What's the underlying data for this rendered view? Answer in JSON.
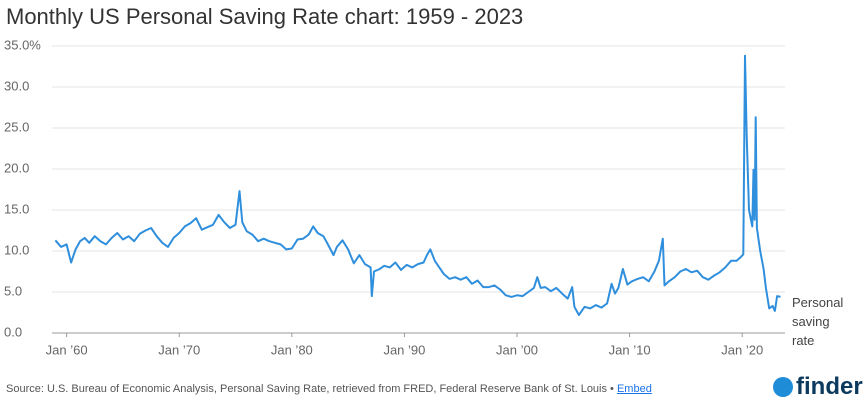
{
  "chart_data": {
    "type": "line",
    "title": "Monthly US Personal Saving Rate chart: 1959 - 2023",
    "source": "Source: U.S. Bureau of Economic Analysis, Personal Saving Rate, retrieved from FRED, Federal Reserve Bank of St. Louis •",
    "embed": "Embed",
    "logo": "finder",
    "grid": true,
    "xlim": [
      1958.7,
      2023.8
    ],
    "xticks": [
      {
        "value": 1960,
        "label": "Jan ’60"
      },
      {
        "value": 1970,
        "label": "Jan ’70"
      },
      {
        "value": 1980,
        "label": "Jan ’80"
      },
      {
        "value": 1990,
        "label": "Jan ’90"
      },
      {
        "value": 2000,
        "label": "Jan ’00"
      },
      {
        "value": 2010,
        "label": "Jan ’10"
      },
      {
        "value": 2020,
        "label": "Jan ’20"
      }
    ],
    "ylim": [
      0,
      35
    ],
    "yticks": [
      {
        "value": 0,
        "label": "0.0"
      },
      {
        "value": 5,
        "label": "5.0"
      },
      {
        "value": 10,
        "label": "10.0"
      },
      {
        "value": 15,
        "label": "15.0"
      },
      {
        "value": 20,
        "label": "20.0"
      },
      {
        "value": 25,
        "label": "25.0"
      },
      {
        "value": 30,
        "label": "30.0"
      },
      {
        "value": 35,
        "label": "35.0%"
      }
    ],
    "x": [
      1959.0,
      1959.5,
      1960.0,
      1960.4,
      1960.8,
      1961.2,
      1961.6,
      1962.0,
      1962.5,
      1963.0,
      1963.5,
      1964.0,
      1964.5,
      1965.0,
      1965.5,
      1966.0,
      1966.5,
      1967.0,
      1967.5,
      1968.0,
      1968.5,
      1969.0,
      1969.5,
      1970.0,
      1970.5,
      1971.0,
      1971.5,
      1972.0,
      1972.5,
      1973.0,
      1973.5,
      1974.0,
      1974.5,
      1975.0,
      1975.35,
      1975.6,
      1976.0,
      1976.5,
      1977.0,
      1977.5,
      1978.0,
      1978.5,
      1979.0,
      1979.5,
      1980.0,
      1980.5,
      1981.0,
      1981.5,
      1981.9,
      1982.3,
      1982.8,
      1983.2,
      1983.7,
      1984.0,
      1984.5,
      1985.0,
      1985.5,
      1986.0,
      1986.5,
      1987.0,
      1987.1,
      1987.3,
      1987.8,
      1988.2,
      1988.7,
      1989.2,
      1989.7,
      1990.2,
      1990.7,
      1991.2,
      1991.7,
      1992.0,
      1992.3,
      1992.7,
      1993.0,
      1993.5,
      1994.0,
      1994.5,
      1995.0,
      1995.5,
      1996.0,
      1996.5,
      1997.0,
      1997.5,
      1998.0,
      1998.5,
      1999.0,
      1999.5,
      2000.0,
      2000.5,
      2001.0,
      2001.5,
      2001.8,
      2002.1,
      2002.5,
      2003.0,
      2003.5,
      2004.0,
      2004.5,
      2004.9,
      2005.1,
      2005.5,
      2006.0,
      2006.5,
      2007.0,
      2007.5,
      2008.0,
      2008.4,
      2008.7,
      2009.0,
      2009.4,
      2009.8,
      2010.2,
      2010.7,
      2011.2,
      2011.7,
      2012.2,
      2012.6,
      2012.95,
      2013.1,
      2013.5,
      2014.0,
      2014.5,
      2015.0,
      2015.5,
      2016.0,
      2016.5,
      2017.0,
      2017.5,
      2018.0,
      2018.5,
      2019.0,
      2019.5,
      2019.9,
      2020.1,
      2020.25,
      2020.4,
      2020.6,
      2020.9,
      2021.0,
      2021.1,
      2021.2,
      2021.3,
      2021.6,
      2021.9,
      2022.1,
      2022.4,
      2022.7,
      2022.9,
      2023.1,
      2023.4
    ],
    "series": [
      {
        "name": "Personal saving rate",
        "color": "#2f8fdd",
        "values": [
          11.3,
          10.5,
          10.8,
          8.6,
          10.2,
          11.2,
          11.6,
          11.0,
          11.8,
          11.2,
          10.8,
          11.6,
          12.2,
          11.4,
          11.8,
          11.2,
          12.1,
          12.5,
          12.8,
          11.8,
          11.0,
          10.5,
          11.6,
          12.2,
          13.0,
          13.4,
          14.0,
          12.6,
          12.9,
          13.2,
          14.4,
          13.5,
          12.8,
          13.2,
          17.3,
          13.5,
          12.4,
          12.0,
          11.2,
          11.5,
          11.2,
          11.0,
          10.8,
          10.2,
          10.3,
          11.4,
          11.5,
          12.0,
          13.0,
          12.2,
          11.8,
          10.8,
          9.5,
          10.5,
          11.3,
          10.2,
          8.5,
          9.5,
          8.4,
          8.0,
          4.5,
          7.5,
          7.8,
          8.2,
          8.0,
          8.6,
          7.7,
          8.3,
          8.0,
          8.4,
          8.6,
          9.5,
          10.2,
          8.8,
          8.2,
          7.2,
          6.6,
          6.8,
          6.5,
          6.8,
          6.0,
          6.4,
          5.6,
          5.6,
          5.8,
          5.3,
          4.6,
          4.4,
          4.6,
          4.5,
          5.0,
          5.5,
          6.8,
          5.5,
          5.6,
          5.1,
          5.5,
          4.8,
          4.2,
          5.6,
          3.2,
          2.2,
          3.2,
          3.0,
          3.4,
          3.1,
          3.6,
          6.0,
          4.8,
          5.5,
          7.8,
          5.9,
          6.3,
          6.6,
          6.8,
          6.3,
          7.5,
          8.8,
          11.5,
          5.8,
          6.3,
          6.8,
          7.5,
          7.8,
          7.4,
          7.6,
          6.8,
          6.5,
          7.0,
          7.4,
          8.0,
          8.8,
          8.8,
          9.3,
          9.6,
          33.8,
          24.0,
          15.0,
          13.0,
          19.9,
          13.8,
          26.3,
          12.8,
          10.0,
          7.8,
          5.5,
          3.0,
          3.3,
          2.7,
          4.5,
          4.4
        ]
      }
    ]
  }
}
